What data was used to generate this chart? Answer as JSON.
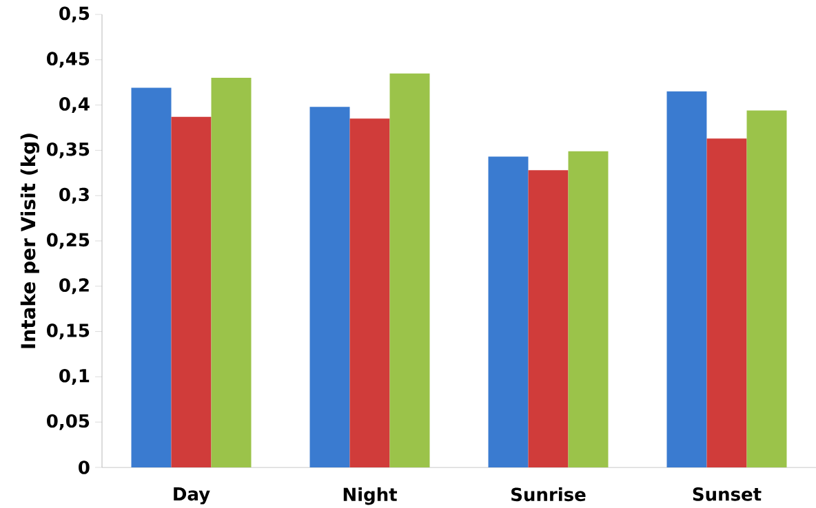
{
  "chart_data": {
    "type": "bar",
    "ylabel": "Intake per Visit (kg)",
    "categories": [
      "Day",
      "Night",
      "Sunrise",
      "Sunset"
    ],
    "series": [
      {
        "color": "#3a7bd0",
        "values": [
          0.419,
          0.398,
          0.343,
          0.415
        ]
      },
      {
        "color": "#d03c3a",
        "values": [
          0.387,
          0.385,
          0.328,
          0.363
        ]
      },
      {
        "color": "#9bc34a",
        "values": [
          0.43,
          0.435,
          0.349,
          0.394
        ]
      }
    ],
    "ylim": [
      0,
      0.5
    ],
    "yticks": [
      0,
      {
        "value": 0.05,
        "label": "0,05"
      },
      {
        "value": 0.1,
        "label": "0,1"
      },
      {
        "value": 0.15,
        "label": "0,15"
      },
      {
        "value": 0.2,
        "label": "0,2"
      },
      {
        "value": 0.25,
        "label": "0,25"
      },
      {
        "value": 0.3,
        "label": "0,3"
      },
      {
        "value": 0.35,
        "label": "0,35"
      },
      {
        "value": 0.4,
        "label": "0,4"
      },
      {
        "value": 0.45,
        "label": "0,45"
      },
      {
        "value": 0.5,
        "label": "0,5"
      }
    ],
    "grid": false
  }
}
